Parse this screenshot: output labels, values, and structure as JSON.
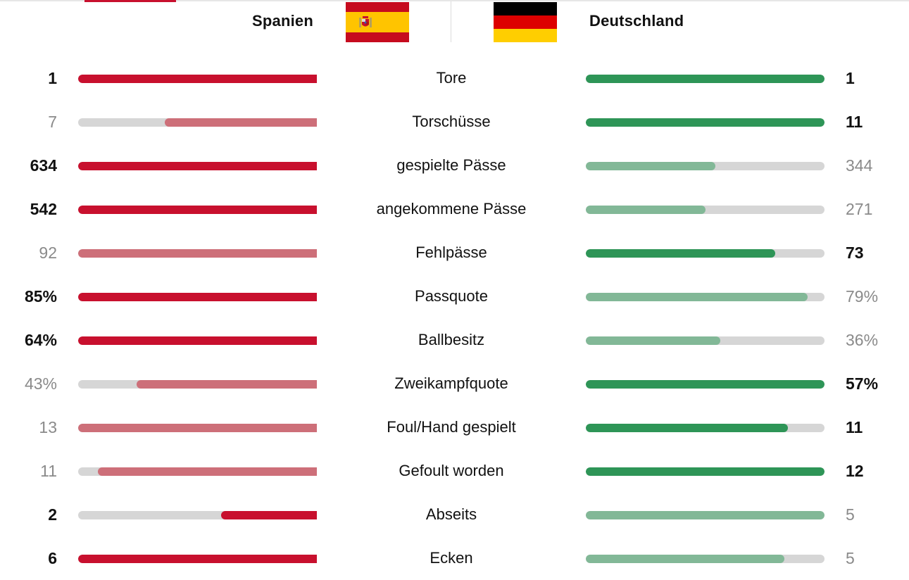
{
  "header": {
    "home_team": "Spanien",
    "away_team": "Deutschland",
    "home_flag_icon": "spain-flag-icon",
    "away_flag_icon": "germany-flag-icon"
  },
  "colors": {
    "home_lead": "#c8102e",
    "home_trail": "#cd6f79",
    "away_lead": "#2e9557",
    "away_trail": "#82b897",
    "track": "#d6d6d6"
  },
  "stats": [
    {
      "label": "Tore",
      "home": "1",
      "away": "1",
      "home_fill": 1.0,
      "away_fill": 1.0,
      "home_lead": true,
      "away_lead": true
    },
    {
      "label": "Torschüsse",
      "home": "7",
      "away": "11",
      "home_fill": 0.636,
      "away_fill": 1.0,
      "home_lead": false,
      "away_lead": true
    },
    {
      "label": "gespielte Pässe",
      "home": "634",
      "away": "344",
      "home_fill": 1.0,
      "away_fill": 0.543,
      "home_lead": true,
      "away_lead": false
    },
    {
      "label": "angekommene Pässe",
      "home": "542",
      "away": "271",
      "home_fill": 1.0,
      "away_fill": 0.5,
      "home_lead": true,
      "away_lead": false
    },
    {
      "label": "Fehlpässe",
      "home": "92",
      "away": "73",
      "home_fill": 1.0,
      "away_fill": 0.793,
      "home_lead": false,
      "away_lead": true
    },
    {
      "label": "Passquote",
      "home": "85%",
      "away": "79%",
      "home_fill": 1.0,
      "away_fill": 0.929,
      "home_lead": true,
      "away_lead": false
    },
    {
      "label": "Ballbesitz",
      "home": "64%",
      "away": "36%",
      "home_fill": 1.0,
      "away_fill": 0.5625,
      "home_lead": true,
      "away_lead": false
    },
    {
      "label": "Zweikampfquote",
      "home": "43%",
      "away": "57%",
      "home_fill": 0.754,
      "away_fill": 1.0,
      "home_lead": false,
      "away_lead": true
    },
    {
      "label": "Foul/Hand gespielt",
      "home": "13",
      "away": "11",
      "home_fill": 1.0,
      "away_fill": 0.846,
      "home_lead": false,
      "away_lead": true
    },
    {
      "label": "Gefoult worden",
      "home": "11",
      "away": "12",
      "home_fill": 0.917,
      "away_fill": 1.0,
      "home_lead": false,
      "away_lead": true
    },
    {
      "label": "Abseits",
      "home": "2",
      "away": "5",
      "home_fill": 0.4,
      "away_fill": 1.0,
      "home_lead": true,
      "away_lead": false
    },
    {
      "label": "Ecken",
      "home": "6",
      "away": "5",
      "home_fill": 1.0,
      "away_fill": 0.833,
      "home_lead": true,
      "away_lead": false
    }
  ]
}
